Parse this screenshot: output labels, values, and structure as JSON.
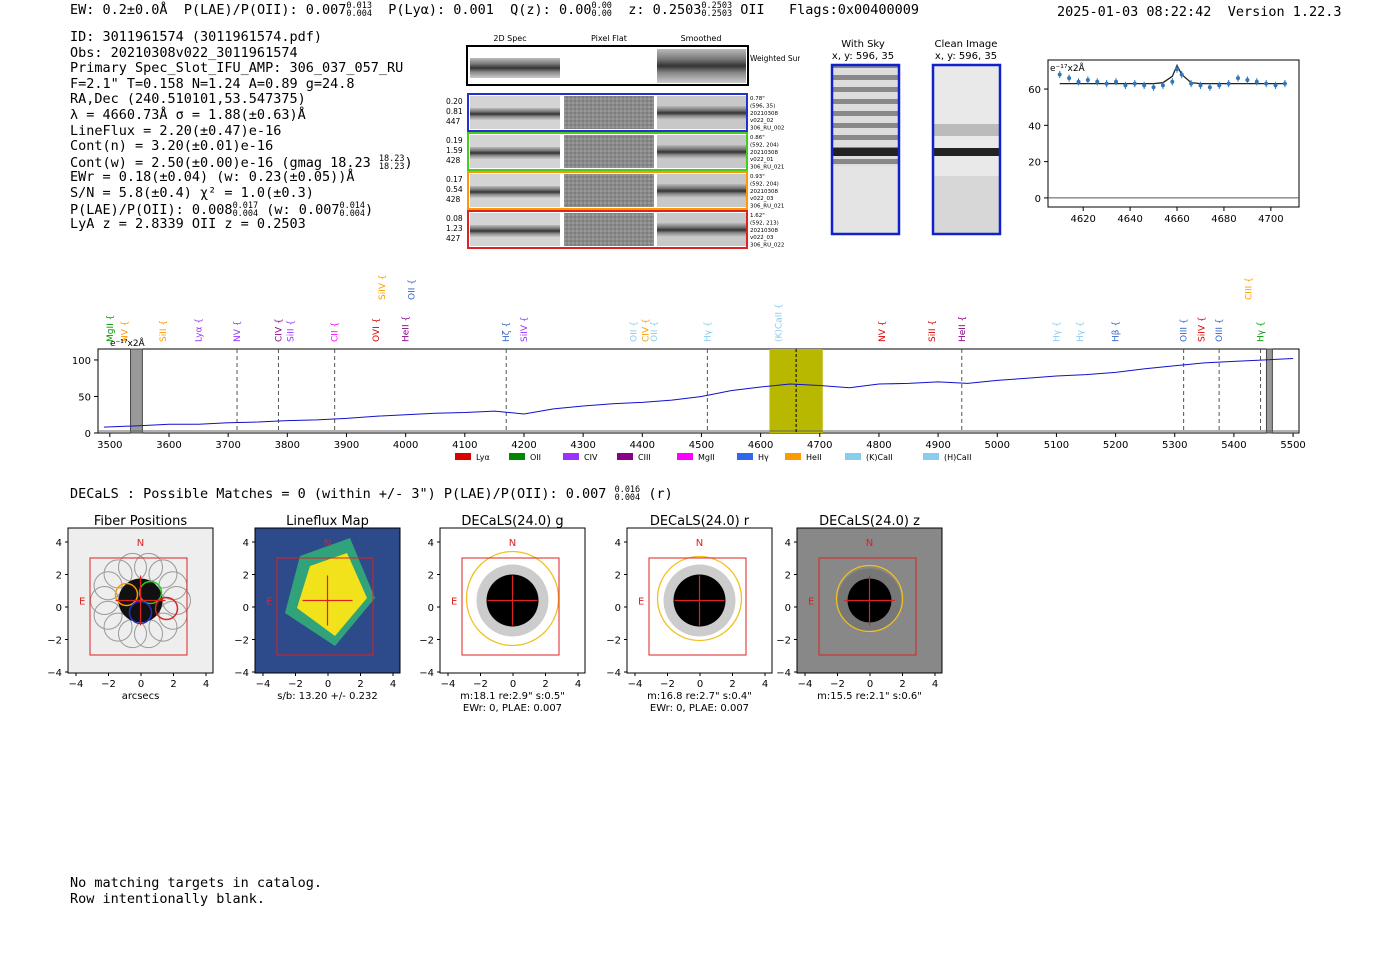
{
  "header": {
    "ew": "EW: 0.2±0.0Å",
    "plae_label": "P(LAE)/P(OII): 0.007",
    "plae_hi": "0.013",
    "plae_lo": "0.004",
    "plya": "P(Lyα): 0.001",
    "qz_label": "Q(z): 0.00",
    "qz_hi": "0.00",
    "qz_lo": "0.00",
    "z_label": "z: 0.2503",
    "z_hi": "0.2503",
    "z_lo": "0.2503",
    "z_line": "OII",
    "flags": "Flags:0x00400009",
    "timestamp": "2025-01-03 08:22:42",
    "version": "Version 1.22.3"
  },
  "info": {
    "id": "ID: 3011961574 (3011961574.pdf)",
    "obs": "Obs: 20210308v022_3011961574",
    "primary": "Primary Spec_Slot_IFU_AMP: 306_037_057_RU",
    "fit": "F=2.1\"  T=0.158  N=1.24  A=0.89  g=24.8",
    "radec": "RA,Dec (240.510101,53.547375)",
    "lambda": "λ = 4660.73Å  σ = 1.88(±0.63)Å",
    "lineflux": "LineFlux = 2.20(±0.47)e-16",
    "contn": "Cont(n) = 3.20(±0.01)e-16",
    "contw": "Cont(w) = 2.50(±0.00)e-16 (gmag 18.23",
    "gmag_hi": "18.23",
    "gmag_lo": "18.23",
    "ewr": "EWr = 0.18(±0.04) (w: 0.23(±0.05))Å",
    "sn": "S/N = 5.8(±0.4)  χ² = 1.0(±0.3)",
    "plae2": "P(LAE)/P(OII): 0.008",
    "plae2_hi": "0.017",
    "plae2_lo": "0.004",
    "plae2_w": "(w: 0.007",
    "plae2_w_hi": "0.014",
    "plae2_w_lo": "0.004",
    "lyaz": "LyA z = 2.8339  OII z = 0.2503"
  },
  "cutouts": {
    "headers": [
      "2D Spec",
      "Pixel Flat",
      "Smoothed"
    ],
    "weighted_sum": "Weighted Sum",
    "rows": [
      {
        "left": [
          "0.20",
          "0.81",
          "447"
        ],
        "right": [
          "0.78\"",
          "(596, 35)",
          "20210308",
          "v022_02",
          "306_RU_002"
        ],
        "color": "#2233cc"
      },
      {
        "left": [
          "0.19",
          "1.59",
          "428"
        ],
        "right": [
          "0.86\"",
          "(592, 204)",
          "20210308",
          "v022_01",
          "306_RU_021"
        ],
        "color": "#44cc22"
      },
      {
        "left": [
          "0.17",
          "0.54",
          "428"
        ],
        "right": [
          "0.93\"",
          "(592, 204)",
          "20210308",
          "v022_03",
          "306_RU_021"
        ],
        "color": "#ff9900"
      },
      {
        "left": [
          "0.08",
          "1.23",
          "427"
        ],
        "right": [
          "1.62\"",
          "(592, 213)",
          "20210308",
          "v022_03",
          "306_RU_022"
        ],
        "color": "#dd2222"
      }
    ]
  },
  "sky_panels": [
    {
      "title": "With Sky",
      "subtitle": "x, y: 596, 35"
    },
    {
      "title": "Clean Image",
      "subtitle": "x, y: 596, 35"
    }
  ],
  "chart_data": [
    {
      "type": "scatter",
      "name": "line-fit-zoom",
      "scale_label": "e⁻¹⁷x2Å",
      "x": [
        4610,
        4614,
        4618,
        4622,
        4626,
        4630,
        4634,
        4638,
        4642,
        4646,
        4650,
        4654,
        4658,
        4660,
        4662,
        4666,
        4670,
        4674,
        4678,
        4682,
        4686,
        4690,
        4694,
        4698,
        4702,
        4706
      ],
      "y": [
        68,
        66,
        64,
        65,
        64,
        63,
        64,
        62,
        63,
        62,
        61,
        62,
        64,
        71,
        68,
        63,
        62,
        61,
        62,
        63,
        66,
        65,
        64,
        63,
        62,
        63
      ],
      "fit": [
        63,
        63,
        63,
        63,
        63,
        63,
        63,
        63,
        63,
        63,
        63,
        63.5,
        67,
        73,
        68,
        63.5,
        63,
        63,
        63,
        63,
        63,
        63,
        63,
        63,
        63,
        63
      ],
      "xlim": [
        4605,
        4712
      ],
      "ylim": [
        -5,
        76
      ],
      "xticks": [
        4620,
        4640,
        4660,
        4680,
        4700
      ],
      "yticks": [
        0,
        20,
        40,
        60
      ]
    },
    {
      "type": "line",
      "name": "full-spectrum",
      "scale_label": "e⁻¹⁷x2Å",
      "x": [
        3490,
        3550,
        3600,
        3650,
        3700,
        3750,
        3800,
        3850,
        3900,
        3950,
        4000,
        4050,
        4100,
        4150,
        4200,
        4250,
        4300,
        4350,
        4400,
        4450,
        4500,
        4550,
        4600,
        4650,
        4700,
        4750,
        4800,
        4850,
        4900,
        4950,
        5000,
        5050,
        5100,
        5150,
        5200,
        5250,
        5300,
        5350,
        5400,
        5450,
        5500
      ],
      "y": [
        8,
        10,
        12,
        12,
        14,
        15,
        17,
        18,
        20,
        23,
        25,
        27,
        28,
        30,
        26,
        33,
        37,
        40,
        42,
        45,
        50,
        58,
        63,
        67,
        65,
        62,
        67,
        68,
        70,
        68,
        72,
        75,
        78,
        80,
        83,
        88,
        92,
        96,
        98,
        100,
        102
      ],
      "xlim": [
        3480,
        5510
      ],
      "ylim": [
        0,
        115
      ],
      "xticks": [
        3500,
        3600,
        3700,
        3800,
        3900,
        4000,
        4100,
        4200,
        4300,
        4400,
        4500,
        4600,
        4700,
        4800,
        4900,
        5000,
        5100,
        5200,
        5300,
        5400,
        5500
      ],
      "yticks": [
        0,
        50,
        100
      ],
      "highlight": [
        4615,
        4705
      ],
      "masked": [
        [
          3535,
          3555
        ],
        [
          5455,
          5465
        ]
      ],
      "lines": [
        {
          "name": "MgII",
          "x": 3500,
          "color": "#009900",
          "dash": false
        },
        {
          "name": "NV",
          "x": 3525,
          "color": "#ff9900",
          "dash": false
        },
        {
          "name": "SiII",
          "x": 3590,
          "color": "#ff9900",
          "dash": false
        },
        {
          "name": "Lyα",
          "x": 3650,
          "color": "#9933ff",
          "dash": false
        },
        {
          "name": "NV",
          "x": 3715,
          "color": "#9933ff",
          "dash": true
        },
        {
          "name": "CIV",
          "x": 3785,
          "color": "#880088",
          "dash": true
        },
        {
          "name": "SiII",
          "x": 3805,
          "color": "#9933ff",
          "dash": false
        },
        {
          "name": "CII",
          "x": 3880,
          "color": "#ff00ff",
          "dash": true
        },
        {
          "name": "OVI",
          "x": 3950,
          "color": "#dd0000",
          "dash": false
        },
        {
          "name": "SiIV",
          "x": 3960,
          "color": "#ff9900",
          "dash": false
        },
        {
          "name": "HeII",
          "x": 4000,
          "color": "#880088",
          "dash": false
        },
        {
          "name": "OII",
          "x": 4010,
          "color": "#3366cc",
          "dash": false
        },
        {
          "name": "Hζ",
          "x": 4170,
          "color": "#3366cc",
          "dash": true
        },
        {
          "name": "SiIV",
          "x": 4200,
          "color": "#9933ff",
          "dash": false
        },
        {
          "name": "OII",
          "x": 4385,
          "color": "#88ccee",
          "dash": false
        },
        {
          "name": "CIV",
          "x": 4405,
          "color": "#ff9900",
          "dash": false
        },
        {
          "name": "OII",
          "x": 4420,
          "color": "#88ccee",
          "dash": false
        },
        {
          "name": "Hγ",
          "x": 4510,
          "color": "#88ccee",
          "dash": true
        },
        {
          "name": "(K)CaII",
          "x": 4630,
          "color": "#88ccee",
          "dash": false
        },
        {
          "name": "NV",
          "x": 4805,
          "color": "#dd0000",
          "dash": false
        },
        {
          "name": "SiII",
          "x": 4890,
          "color": "#dd0000",
          "dash": false
        },
        {
          "name": "HeII",
          "x": 4940,
          "color": "#880088",
          "dash": true
        },
        {
          "name": "Hγ",
          "x": 5100,
          "color": "#88ccee",
          "dash": false
        },
        {
          "name": "Hγ",
          "x": 5140,
          "color": "#88ccee",
          "dash": false
        },
        {
          "name": "Hβ",
          "x": 5200,
          "color": "#3366cc",
          "dash": false
        },
        {
          "name": "OIII",
          "x": 5315,
          "color": "#3366cc",
          "dash": true
        },
        {
          "name": "SiIV",
          "x": 5345,
          "color": "#dd0000",
          "dash": false
        },
        {
          "name": "OIII",
          "x": 5375,
          "color": "#3366cc",
          "dash": true
        },
        {
          "name": "CIII",
          "x": 5425,
          "color": "#ff9900",
          "dash": false
        },
        {
          "name": "Hγ",
          "x": 5445,
          "color": "#009900",
          "dash": true
        }
      ],
      "legend": [
        {
          "name": "Lyα",
          "color": "#dd0000"
        },
        {
          "name": "OII",
          "color": "#008800"
        },
        {
          "name": "CIV",
          "color": "#9933ff"
        },
        {
          "name": "CIII",
          "color": "#880088"
        },
        {
          "name": "MgII",
          "color": "#ff00ff"
        },
        {
          "name": "Hγ",
          "color": "#3366ee"
        },
        {
          "name": "HeII",
          "color": "#ff9900"
        },
        {
          "name": "(K)CaII",
          "color": "#88ccee"
        },
        {
          "name": "(H)CaII",
          "color": "#88ccee"
        }
      ]
    }
  ],
  "decals_line": "DECaLS : Possible Matches = 0 (within +/- 3\")  P(LAE)/P(OII): 0.007",
  "decals_hi": "0.016",
  "decals_lo": "0.004",
  "decals_band": "(r)",
  "image_panels": [
    {
      "title": "Fiber Positions",
      "caption1": "arcsecs",
      "caption2": ""
    },
    {
      "title": "Lineflux Map",
      "caption1": "s/b: 13.20 +/- 0.232",
      "caption2": ""
    },
    {
      "title": "DECaLS(24.0) g",
      "caption1": "m:18.1  re:2.9\"  s:0.5\"",
      "caption2": "EWr: 0, PLAE: 0.007"
    },
    {
      "title": "DECaLS(24.0) r",
      "caption1": "m:16.8  re:2.7\"  s:0.4\"",
      "caption2": "EWr: 0, PLAE: 0.007"
    },
    {
      "title": "DECaLS(24.0) z",
      "caption1": "m:15.5  re:2.1\"  s:0.6\"",
      "caption2": ""
    }
  ],
  "panel_axis": {
    "ticks": [
      "4",
      "2",
      "0",
      "−2",
      "−4"
    ],
    "xticks": [
      "−4",
      "−2",
      "0",
      "2",
      "4"
    ],
    "north": "N",
    "east": "E"
  },
  "footer": {
    "line1": "No matching targets in catalog.",
    "line2": "Row intentionally blank."
  }
}
